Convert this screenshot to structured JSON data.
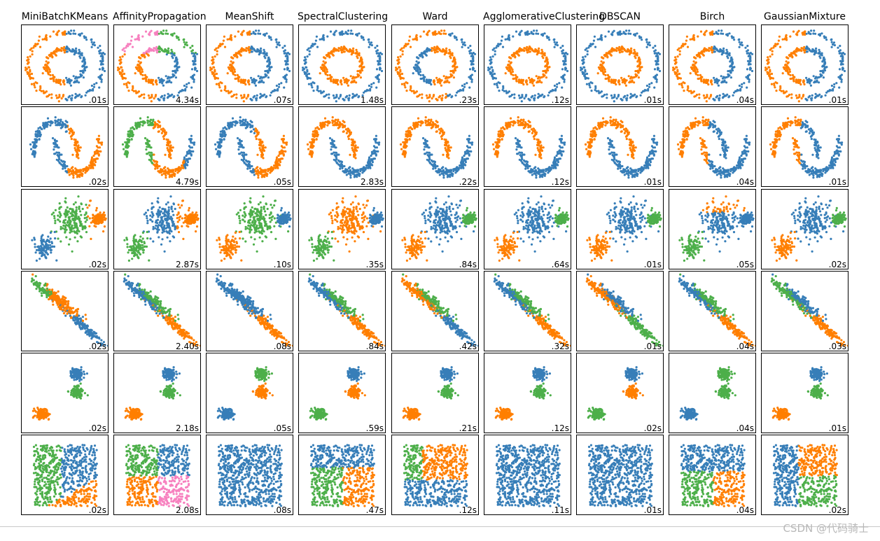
{
  "colors": {
    "blue": "#377eb8",
    "orange": "#ff7f00",
    "green": "#4daf4a",
    "pink": "#f781bf"
  },
  "watermark": "CSDN @代码骑士",
  "chart_data": {
    "type": "scatter",
    "title": "",
    "algorithms": [
      "MiniBatchKMeans",
      "AffinityPropagation",
      "MeanShift",
      "SpectralClustering",
      "Ward",
      "AgglomerativeClustering",
      "DBSCAN",
      "Birch",
      "GaussianMixture"
    ],
    "datasets": [
      "noisy_circles",
      "noisy_moons",
      "varied",
      "aniso",
      "blobs",
      "no_structure"
    ],
    "timings": [
      [
        ".01s",
        "4.34s",
        ".07s",
        "1.48s",
        ".23s",
        ".12s",
        ".01s",
        ".04s",
        ".01s"
      ],
      [
        ".02s",
        "4.79s",
        ".05s",
        "2.83s",
        ".22s",
        ".12s",
        ".01s",
        ".04s",
        ".01s"
      ],
      [
        ".02s",
        "2.87s",
        ".10s",
        ".35s",
        ".84s",
        ".64s",
        ".01s",
        ".05s",
        ".02s"
      ],
      [
        ".02s",
        "2.40s",
        ".08s",
        ".84s",
        ".42s",
        ".32s",
        ".01s",
        ".04s",
        ".03s"
      ],
      [
        ".02s",
        "2.18s",
        ".05s",
        ".59s",
        ".21s",
        ".12s",
        ".02s",
        ".04s",
        ".01s"
      ],
      [
        ".02s",
        "2.08s",
        ".08s",
        ".47s",
        ".12s",
        ".11s",
        ".01s",
        ".04s",
        ".02s"
      ]
    ],
    "grid": false,
    "axes_ticks": false
  }
}
